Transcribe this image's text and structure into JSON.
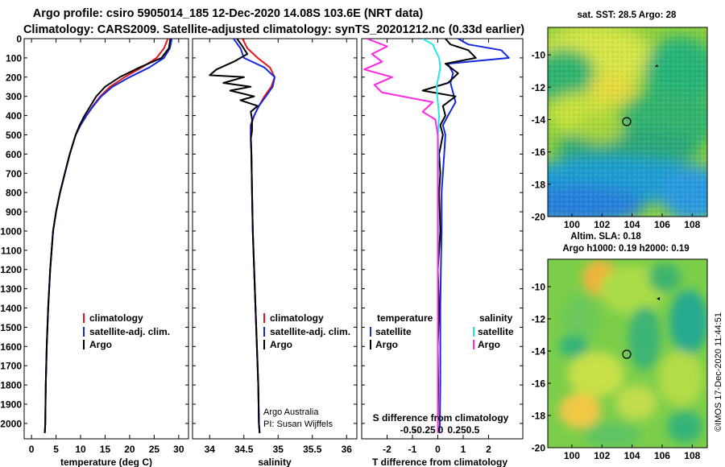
{
  "header": {
    "line1": "Argo profile: csiro 5905014_185 12-Dec-2020 14.08S 103.6E (NRT data)",
    "line2": "Climatology: CARS2009. Satellite-adjusted climatology: synTS_20201212.nc (0.33d earlier)"
  },
  "colors": {
    "climatology": "#e8141e",
    "satellite": "#1428e0",
    "argo": "#000000",
    "sat_salinity": "#28e6e6",
    "argo_salinity": "#ff28e6"
  },
  "legend": {
    "climatology": "climatology",
    "satellite_adj": "satellite-adj. clim.",
    "argo": "Argo",
    "temperature_hdr": "temperature",
    "salinity_hdr": "salinity",
    "satellite": "satellite"
  },
  "credits": {
    "line1": "Argo Australia",
    "line2": "PI: Susan Wijffels"
  },
  "chart_data": [
    {
      "type": "line",
      "id": "temperature",
      "xlabel": "temperature (deg C)",
      "ylabel": "",
      "xlim": [
        -1.5,
        32
      ],
      "ylim": [
        2080,
        0
      ],
      "xticks": [
        0,
        5,
        10,
        15,
        20,
        25,
        30
      ],
      "yticks": [
        0,
        100,
        200,
        300,
        400,
        500,
        600,
        700,
        800,
        900,
        1000,
        1100,
        1200,
        1300,
        1400,
        1500,
        1600,
        1700,
        1800,
        1900,
        2000
      ],
      "series": [
        {
          "name": "climatology",
          "x": [
            27.8,
            27,
            25.5,
            22.5,
            19,
            16,
            14,
            12.5,
            11.2,
            10,
            9,
            7.8,
            6.8,
            5.8,
            5,
            4.4,
            3.8,
            3.4,
            3.1,
            2.9,
            2.8,
            2.7
          ],
          "y": [
            0,
            50,
            100,
            150,
            200,
            250,
            300,
            350,
            400,
            450,
            500,
            600,
            700,
            800,
            900,
            1000,
            1200,
            1400,
            1600,
            1800,
            2000,
            2050
          ]
        },
        {
          "name": "satellite-adj. clim.",
          "x": [
            28.6,
            28.2,
            27,
            24,
            20,
            16.5,
            14.2,
            12.6,
            11.2,
            10,
            9,
            7.8,
            6.8,
            5.8,
            5,
            4.4,
            3.8,
            3.4,
            3.1,
            2.9,
            2.8,
            2.7
          ],
          "y": [
            0,
            50,
            100,
            150,
            200,
            250,
            300,
            350,
            400,
            450,
            500,
            600,
            700,
            800,
            900,
            1000,
            1200,
            1400,
            1600,
            1800,
            2000,
            2050
          ]
        },
        {
          "name": "Argo",
          "x": [
            28.3,
            28,
            26.5,
            22,
            18,
            15,
            13.2,
            12,
            10.8,
            9.8,
            9,
            7.8,
            6.8,
            5.8,
            5,
            4.4,
            3.8,
            3.4,
            3.1,
            2.9,
            2.8,
            2.7
          ],
          "y": [
            0,
            50,
            100,
            150,
            200,
            250,
            300,
            350,
            400,
            450,
            500,
            600,
            700,
            800,
            900,
            1000,
            1200,
            1400,
            1600,
            1800,
            2000,
            2050
          ]
        }
      ]
    },
    {
      "type": "line",
      "id": "salinity",
      "xlabel": "salinity",
      "ylabel": "",
      "xlim": [
        33.75,
        36.15
      ],
      "ylim": [
        2080,
        0
      ],
      "xticks": [
        34,
        34.5,
        35,
        35.5,
        36
      ],
      "xticklabels": [
        "34",
        "34.5",
        "35",
        "35.5",
        "36"
      ],
      "series": [
        {
          "name": "climatology",
          "x": [
            34.48,
            34.55,
            34.7,
            34.88,
            34.95,
            34.9,
            34.8,
            34.72,
            34.65,
            34.6,
            34.6,
            34.61,
            34.62,
            34.63,
            34.65,
            34.67,
            34.69,
            34.71,
            34.72,
            34.73
          ],
          "y": [
            0,
            50,
            100,
            150,
            200,
            250,
            300,
            350,
            400,
            450,
            500,
            600,
            800,
            1000,
            1200,
            1400,
            1600,
            1800,
            2000,
            2050
          ]
        },
        {
          "name": "satellite-adj. clim.",
          "x": [
            34.35,
            34.45,
            34.5,
            34.8,
            34.95,
            34.92,
            34.82,
            34.72,
            34.65,
            34.6,
            34.6,
            34.61,
            34.62,
            34.63,
            34.65,
            34.67,
            34.69,
            34.71,
            34.72,
            34.73
          ],
          "y": [
            0,
            50,
            100,
            150,
            200,
            250,
            300,
            350,
            400,
            450,
            500,
            600,
            800,
            1000,
            1200,
            1400,
            1600,
            1800,
            2000,
            2050
          ]
        },
        {
          "name": "Argo",
          "x": [
            34.4,
            34.48,
            34.55,
            34.35,
            34.1,
            34,
            34.5,
            34.2,
            34.6,
            34.3,
            34.65,
            34.45,
            34.7,
            34.6,
            34.62,
            34.62,
            34.6,
            34.61,
            34.62,
            34.63,
            34.65,
            34.67,
            34.69,
            34.71,
            34.72,
            34.73
          ],
          "y": [
            0,
            40,
            80,
            120,
            160,
            190,
            200,
            230,
            250,
            270,
            300,
            320,
            350,
            380,
            420,
            480,
            520,
            600,
            800,
            1000,
            1200,
            1400,
            1600,
            1800,
            2000,
            2050
          ]
        }
      ]
    },
    {
      "type": "line",
      "id": "difference",
      "xlabel": "T difference from climatology",
      "title2": "S difference from climatology",
      "xlim": [
        -3,
        3.35
      ],
      "ylim": [
        2080,
        0
      ],
      "xticks": [
        -2,
        -1,
        0,
        1,
        2
      ],
      "s_xticks": [
        -0.5,
        -0.25,
        0,
        0.25,
        0.5
      ],
      "s_xticklabels": [
        "-0.5",
        "-0.25",
        "0",
        "0.25",
        "0.5"
      ],
      "series": [
        {
          "name": "T satellite",
          "x": [
            0.8,
            1.2,
            2.5,
            2.8,
            0.4,
            0.6,
            0.5,
            0.6,
            0.7,
            0.4,
            0.2,
            0.3,
            0.25,
            0.2,
            0.15,
            0.15,
            0.12,
            0.1,
            0.1,
            0.1,
            0.08,
            0.05
          ],
          "y": [
            0,
            30,
            60,
            100,
            130,
            180,
            230,
            280,
            330,
            400,
            450,
            500,
            600,
            700,
            800,
            1000,
            1200,
            1400,
            1600,
            1800,
            2000,
            2050
          ]
        },
        {
          "name": "T Argo",
          "x": [
            0.3,
            0.5,
            1.2,
            1.5,
            0.3,
            0.8,
            0.4,
            -0.6,
            0.7,
            0.2,
            0.3,
            0.1,
            0.2,
            0.05,
            0.1,
            0.05,
            0.1,
            0,
            0.05,
            0,
            0.02,
            0
          ],
          "y": [
            0,
            30,
            60,
            100,
            130,
            180,
            230,
            270,
            300,
            350,
            400,
            450,
            500,
            600,
            700,
            800,
            1000,
            1200,
            1400,
            1600,
            1800,
            2050
          ]
        },
        {
          "name": "S satellite",
          "x": [
            -0.6,
            -0.2,
            -0.1,
            0.05,
            0.1,
            -0.05,
            0,
            0.05,
            0,
            0.02,
            0,
            0.01,
            0,
            0,
            0,
            0
          ],
          "y": [
            0,
            30,
            60,
            100,
            150,
            250,
            330,
            400,
            500,
            600,
            800,
            1000,
            1200,
            1600,
            2000,
            2050
          ]
        },
        {
          "name": "S Argo",
          "x": [
            -2.8,
            -2,
            -2.6,
            -2.2,
            -2.9,
            -1.8,
            -2.5,
            -2.2,
            -0.2,
            -0.6,
            -0.1,
            0,
            0,
            0,
            0,
            0
          ],
          "y": [
            0,
            40,
            80,
            120,
            160,
            200,
            240,
            280,
            330,
            380,
            420,
            500,
            800,
            1200,
            1800,
            2050
          ]
        }
      ]
    },
    {
      "type": "heatmap",
      "id": "sst_map",
      "title": "sat. SST: 28.5 Argo: 28",
      "xlim": [
        98.4,
        109
      ],
      "ylim": [
        -20,
        -8.3
      ],
      "xticks": [
        100,
        102,
        104,
        106,
        108
      ],
      "yticks": [
        -10,
        -12,
        -14,
        -16,
        -18,
        -20
      ],
      "argo_position": {
        "lon": 103.6,
        "lat": -14.08
      }
    },
    {
      "type": "heatmap",
      "id": "sla_map",
      "title": "Altim. SLA: 0.18",
      "subtitle": "Argo h1000: 0.19 h2000: 0.19",
      "xlim": [
        98.4,
        109
      ],
      "ylim": [
        -20,
        -8.3
      ],
      "xticks": [
        100,
        102,
        104,
        106,
        108
      ],
      "yticks": [
        -10,
        -12,
        -14,
        -16,
        -18,
        -20
      ],
      "argo_position": {
        "lon": 103.6,
        "lat": -14.08
      },
      "footer": "©IMOS 17-Dec-2020 11:44:51"
    }
  ]
}
